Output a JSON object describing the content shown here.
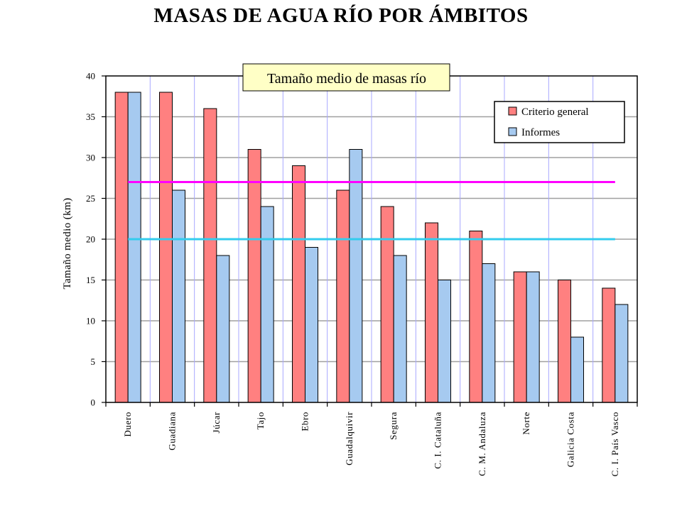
{
  "page": {
    "title": "MASAS DE AGUA RÍO POR ÁMBITOS"
  },
  "chart_data": {
    "type": "bar",
    "title": "MASAS DE AGUA RÍO POR ÁMBITOS",
    "subtitle": "Tamaño medio de masas río",
    "xlabel": "",
    "ylabel": "Tamaño medio (km)",
    "ylim": [
      0,
      40
    ],
    "yticks": [
      0,
      5,
      10,
      15,
      20,
      25,
      30,
      35,
      40
    ],
    "grid": true,
    "legend_position": "top-right",
    "categories": [
      "Duero",
      "Guadiana",
      "Júcar",
      "Tajo",
      "Ebro",
      "Guadalquivir",
      "Segura",
      "C. I. Cataluña",
      "C. M. Andaluza",
      "Norte",
      "Galicia Costa",
      "C. I. País Vasco"
    ],
    "series": [
      {
        "name": "Criterio general",
        "color": "#ff8080",
        "values": [
          38,
          38,
          36,
          31,
          29,
          26,
          24,
          22,
          21,
          16,
          15,
          14
        ]
      },
      {
        "name": "Informes",
        "color": "#a6caf0",
        "values": [
          38,
          26,
          18,
          24,
          19,
          31,
          18,
          15,
          17,
          16,
          8,
          12
        ]
      }
    ],
    "reference_lines": [
      {
        "value": 27,
        "color": "#ff00ff"
      },
      {
        "value": 20,
        "color": "#33ccee"
      }
    ]
  }
}
